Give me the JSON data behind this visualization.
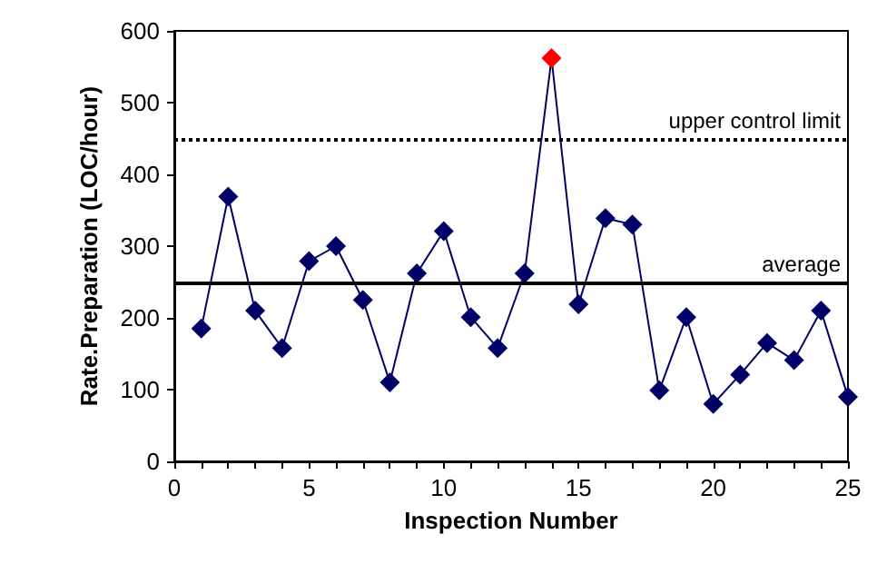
{
  "chart_data": {
    "type": "line",
    "xlabel": "Inspection Number",
    "ylabel": "Rate.Preparation (LOC/hour)",
    "x": [
      1,
      2,
      3,
      4,
      5,
      6,
      7,
      8,
      9,
      10,
      11,
      12,
      13,
      14,
      15,
      16,
      17,
      18,
      19,
      20,
      21,
      22,
      23,
      24,
      25
    ],
    "series": [
      {
        "color": "#000066",
        "colors": [
          "#000066",
          "#000066",
          "#000066",
          "#000066",
          "#000066",
          "#000066",
          "#000066",
          "#000066",
          "#000066",
          "#000066",
          "#000066",
          "#000066",
          "#000066",
          "#ff0000",
          "#000066",
          "#000066",
          "#000066",
          "#000066",
          "#000066",
          "#000066",
          "#000066",
          "#000066",
          "#000066",
          "#000066",
          "#000066"
        ],
        "values": [
          185,
          369,
          210,
          158,
          279,
          300,
          225,
          110,
          262,
          321,
          201,
          158,
          262,
          562,
          219,
          339,
          330,
          99,
          201,
          80,
          121,
          165,
          141,
          210,
          90
        ]
      }
    ],
    "xlim": [
      0,
      25
    ],
    "xticks": [
      0,
      {
        "value": 1,
        "label": null
      },
      {
        "value": 2,
        "label": null
      },
      {
        "value": 3,
        "label": null
      },
      {
        "value": 4,
        "label": null
      },
      5,
      {
        "value": 6,
        "label": null
      },
      {
        "value": 7,
        "label": null
      },
      {
        "value": 8,
        "label": null
      },
      {
        "value": 9,
        "label": null
      },
      10,
      {
        "value": 11,
        "label": null
      },
      {
        "value": 12,
        "label": null
      },
      {
        "value": 13,
        "label": null
      },
      {
        "value": 14,
        "label": null
      },
      15,
      {
        "value": 16,
        "label": null
      },
      {
        "value": 17,
        "label": null
      },
      {
        "value": 18,
        "label": null
      },
      {
        "value": 19,
        "label": null
      },
      20,
      {
        "value": 21,
        "label": null
      },
      {
        "value": 22,
        "label": null
      },
      {
        "value": 23,
        "label": null
      },
      {
        "value": 24,
        "label": null
      },
      25
    ],
    "ylim": [
      0,
      600
    ],
    "yticks": [
      0,
      100,
      200,
      300,
      400,
      500,
      600
    ],
    "ref_lines": [
      {
        "axis": "y",
        "value": 450,
        "label": "upper control limit",
        "line_style": "dotted",
        "color": "#000000"
      },
      {
        "axis": "y",
        "value": 250,
        "label": "average",
        "line_style": "solid",
        "color": "#000000"
      }
    ],
    "grid": false,
    "marker": "diamond",
    "line_style": "solid"
  }
}
